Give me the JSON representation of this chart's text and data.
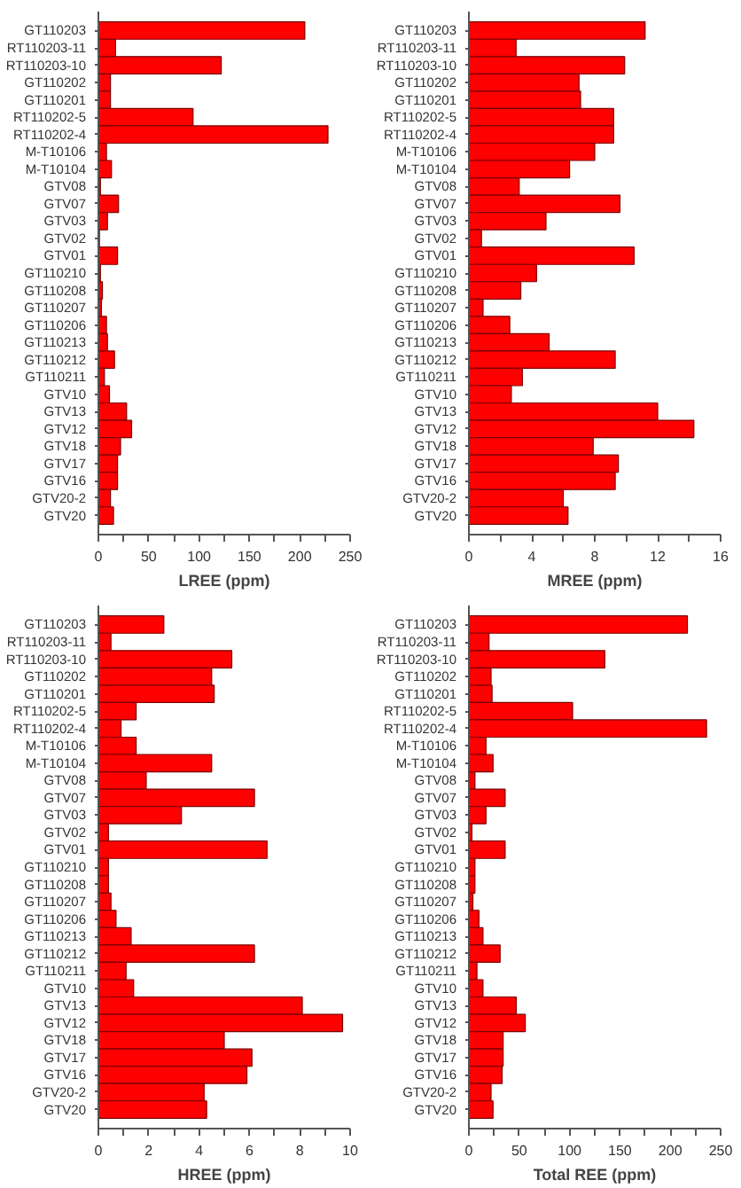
{
  "chart_data": [
    {
      "type": "bar",
      "orientation": "horizontal",
      "xlabel": "LREE (ppm)",
      "color": "#ff0000",
      "categories": [
        "GT110203",
        "RT110203-11",
        "RT110203-10",
        "GT110202",
        "GT110201",
        "RT110202-5",
        "RT110202-4",
        "M-T10106",
        "M-T10104",
        "GTV08",
        "GTV07",
        "GTV03",
        "GTV02",
        "GTV01",
        "GT110210",
        "GT110208",
        "GT110207",
        "GT110206",
        "GT110213",
        "GT110212",
        "GT110211",
        "GTV10",
        "GTV13",
        "GTV12",
        "GTV18",
        "GTV17",
        "GTV16",
        "GTV20-2",
        "GTV20"
      ],
      "values": [
        205,
        17,
        122,
        12,
        12,
        94,
        228,
        8,
        13,
        2,
        20,
        9,
        1,
        19,
        2,
        4,
        3,
        8,
        9,
        16,
        6,
        11,
        28,
        33,
        22,
        19,
        19,
        12,
        15
      ],
      "xlim": [
        0,
        250
      ],
      "xticks": [
        0,
        {
          "value": 25,
          "label": null
        },
        50,
        {
          "value": 75,
          "label": null
        },
        100,
        {
          "value": 125,
          "label": null
        },
        150,
        {
          "value": 175,
          "label": null
        },
        200,
        {
          "value": 225,
          "label": null
        },
        250
      ]
    },
    {
      "type": "bar",
      "orientation": "horizontal",
      "xlabel": "MREE (ppm)",
      "color": "#ff0000",
      "categories": [
        "GT110203",
        "RT110203-11",
        "RT110203-10",
        "GT110202",
        "GT110201",
        "RT110202-5",
        "RT110202-4",
        "M-T10106",
        "M-T10104",
        "GTV08",
        "GTV07",
        "GTV03",
        "GTV02",
        "GTV01",
        "GT110210",
        "GT110208",
        "GT110207",
        "GT110206",
        "GT110213",
        "GT110212",
        "GT110211",
        "GTV10",
        "GTV13",
        "GTV12",
        "GTV18",
        "GTV17",
        "GTV16",
        "GTV20-2",
        "GTV20"
      ],
      "values": [
        11.2,
        3.0,
        9.9,
        7.0,
        7.1,
        9.2,
        9.2,
        8.0,
        6.4,
        3.2,
        9.6,
        4.9,
        0.8,
        10.5,
        4.3,
        3.3,
        0.9,
        2.6,
        5.1,
        9.3,
        3.4,
        2.7,
        12.0,
        14.3,
        7.9,
        9.5,
        9.3,
        6.0,
        6.3
      ],
      "xlim": [
        0,
        16
      ],
      "xticks": [
        0,
        {
          "value": 2,
          "label": null
        },
        4,
        {
          "value": 6,
          "label": null
        },
        8,
        {
          "value": 10,
          "label": null
        },
        12,
        {
          "value": 14,
          "label": null
        },
        16
      ]
    },
    {
      "type": "bar",
      "orientation": "horizontal",
      "xlabel": "HREE (ppm)",
      "color": "#ff0000",
      "categories": [
        "GT110203",
        "RT110203-11",
        "RT110203-10",
        "GT110202",
        "GT110201",
        "RT110202-5",
        "RT110202-4",
        "M-T10106",
        "M-T10104",
        "GTV08",
        "GTV07",
        "GTV03",
        "GTV02",
        "GTV01",
        "GT110210",
        "GT110208",
        "GT110207",
        "GT110206",
        "GT110213",
        "GT110212",
        "GT110211",
        "GTV10",
        "GTV13",
        "GTV12",
        "GTV18",
        "GTV17",
        "GTV16",
        "GTV20-2",
        "GTV20"
      ],
      "values": [
        2.6,
        0.5,
        5.3,
        4.5,
        4.6,
        1.5,
        0.9,
        1.5,
        4.5,
        1.9,
        6.2,
        3.3,
        0.4,
        6.7,
        0.4,
        0.4,
        0.5,
        0.7,
        1.3,
        6.2,
        1.1,
        1.4,
        8.1,
        9.7,
        5.0,
        6.1,
        5.9,
        4.2,
        4.3
      ],
      "xlim": [
        0,
        10
      ],
      "xticks": [
        0,
        {
          "value": 1,
          "label": null
        },
        2,
        {
          "value": 3,
          "label": null
        },
        4,
        {
          "value": 5,
          "label": null
        },
        6,
        {
          "value": 7,
          "label": null
        },
        8,
        {
          "value": 9,
          "label": null
        },
        10
      ]
    },
    {
      "type": "bar",
      "orientation": "horizontal",
      "xlabel": "Total REE (ppm)",
      "color": "#ff0000",
      "categories": [
        "GT110203",
        "RT110203-11",
        "RT110203-10",
        "GT110202",
        "GT110201",
        "RT110202-5",
        "RT110202-4",
        "M-T10106",
        "M-T10104",
        "GTV08",
        "GTV07",
        "GTV03",
        "GTV02",
        "GTV01",
        "GT110210",
        "GT110208",
        "GT110207",
        "GT110206",
        "GT110213",
        "GT110212",
        "GT110211",
        "GTV10",
        "GTV13",
        "GTV12",
        "GTV18",
        "GTV17",
        "GTV16",
        "GTV20-2",
        "GTV20"
      ],
      "values": [
        217,
        20,
        135,
        22,
        23,
        103,
        236,
        17,
        24,
        6,
        36,
        17,
        3,
        36,
        6,
        6,
        4,
        10,
        14,
        31,
        8,
        14,
        47,
        56,
        34,
        34,
        33,
        22,
        24
      ],
      "xlim": [
        0,
        250
      ],
      "xticks": [
        0,
        {
          "value": 25,
          "label": null
        },
        50,
        {
          "value": 75,
          "label": null
        },
        100,
        {
          "value": 125,
          "label": null
        },
        150,
        {
          "value": 175,
          "label": null
        },
        200,
        {
          "value": 225,
          "label": null
        },
        250
      ]
    }
  ]
}
